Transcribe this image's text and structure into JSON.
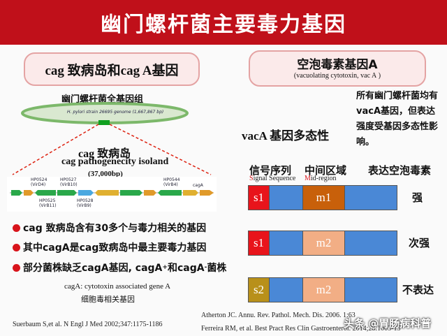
{
  "header": {
    "title": "幽门螺杆菌主要毒力基因"
  },
  "left": {
    "section_title": "cag 致病岛和cag A基因",
    "genome_caption": "幽门螺杆菌全基因组",
    "genome_strain_text": "H. pylori strain 26695 genome (1,667,867 bp)",
    "island_title_cn": "cag 致病岛",
    "island_title_en": "cag pathogenecity isoland",
    "island_size": "(37,000bp)",
    "genes": {
      "g1": "HP0524",
      "g1b": "(VirD4)",
      "g2": "HP0527",
      "g2b": "(VirB10)",
      "g3": "HP0525",
      "g3b": "(VirB11)",
      "g4": "HP0528",
      "g4b": "(VirB9)",
      "g5": "HP0544",
      "g5b": "(VirB4)",
      "g6": "cagA"
    },
    "bullets": [
      "cag 致病岛含有30多个与毒力相关的基因",
      "其中cagA是cag致病岛中最主要毒力基因",
      "部分菌株缺乏cagA基因, cagA",
      "和cagA",
      "菌株"
    ],
    "sup_plus": "+",
    "sup_minus": "-",
    "note_en": "cagA: cytotoxin associated gene A",
    "note_cn": "细胞毒相关基因",
    "citation": "Suerbaum S,et al. N Engl J Med  2002;347:1175-1186"
  },
  "right": {
    "section_title": "空泡毒素基因A",
    "section_subtitle": "(vacuolating cytotoxin, vac A )",
    "description": "所有幽门螺杆菌均有vacA基因，但表达强度受基因多态性影响。",
    "polymorphism_label": "vacA 基因多态性",
    "col_signal_cn": "信号序列",
    "col_signal_en_first": "S",
    "col_signal_en_rest": "ignal Sequence",
    "col_mid_cn": "中间区域",
    "col_mid_en_first": "M",
    "col_mid_en_rest": "id-region",
    "col_expr_cn": "表达空泡毒素",
    "rows": [
      {
        "s": "s1",
        "m": "m1",
        "level": "强"
      },
      {
        "s": "s1",
        "m": "m2",
        "level": "次强"
      },
      {
        "s": "s2",
        "m": "m2",
        "level": "不表达"
      }
    ],
    "citation1": "Atherton JC. Annu. Rev. Pathol. Mech. Dis. 2006. 1:63",
    "citation2": "Ferreira RM, et al. Best Pract Res Clin Gastroenterol. 2014;28:1003-15"
  },
  "watermark": "头条 @胃肠病科普",
  "colors": {
    "banner": "#c0101a",
    "s1": "#e8141b",
    "s2": "#b8901a",
    "m1": "#c8600a",
    "m2": "#f2ae85",
    "rest": "#4a88d6"
  }
}
